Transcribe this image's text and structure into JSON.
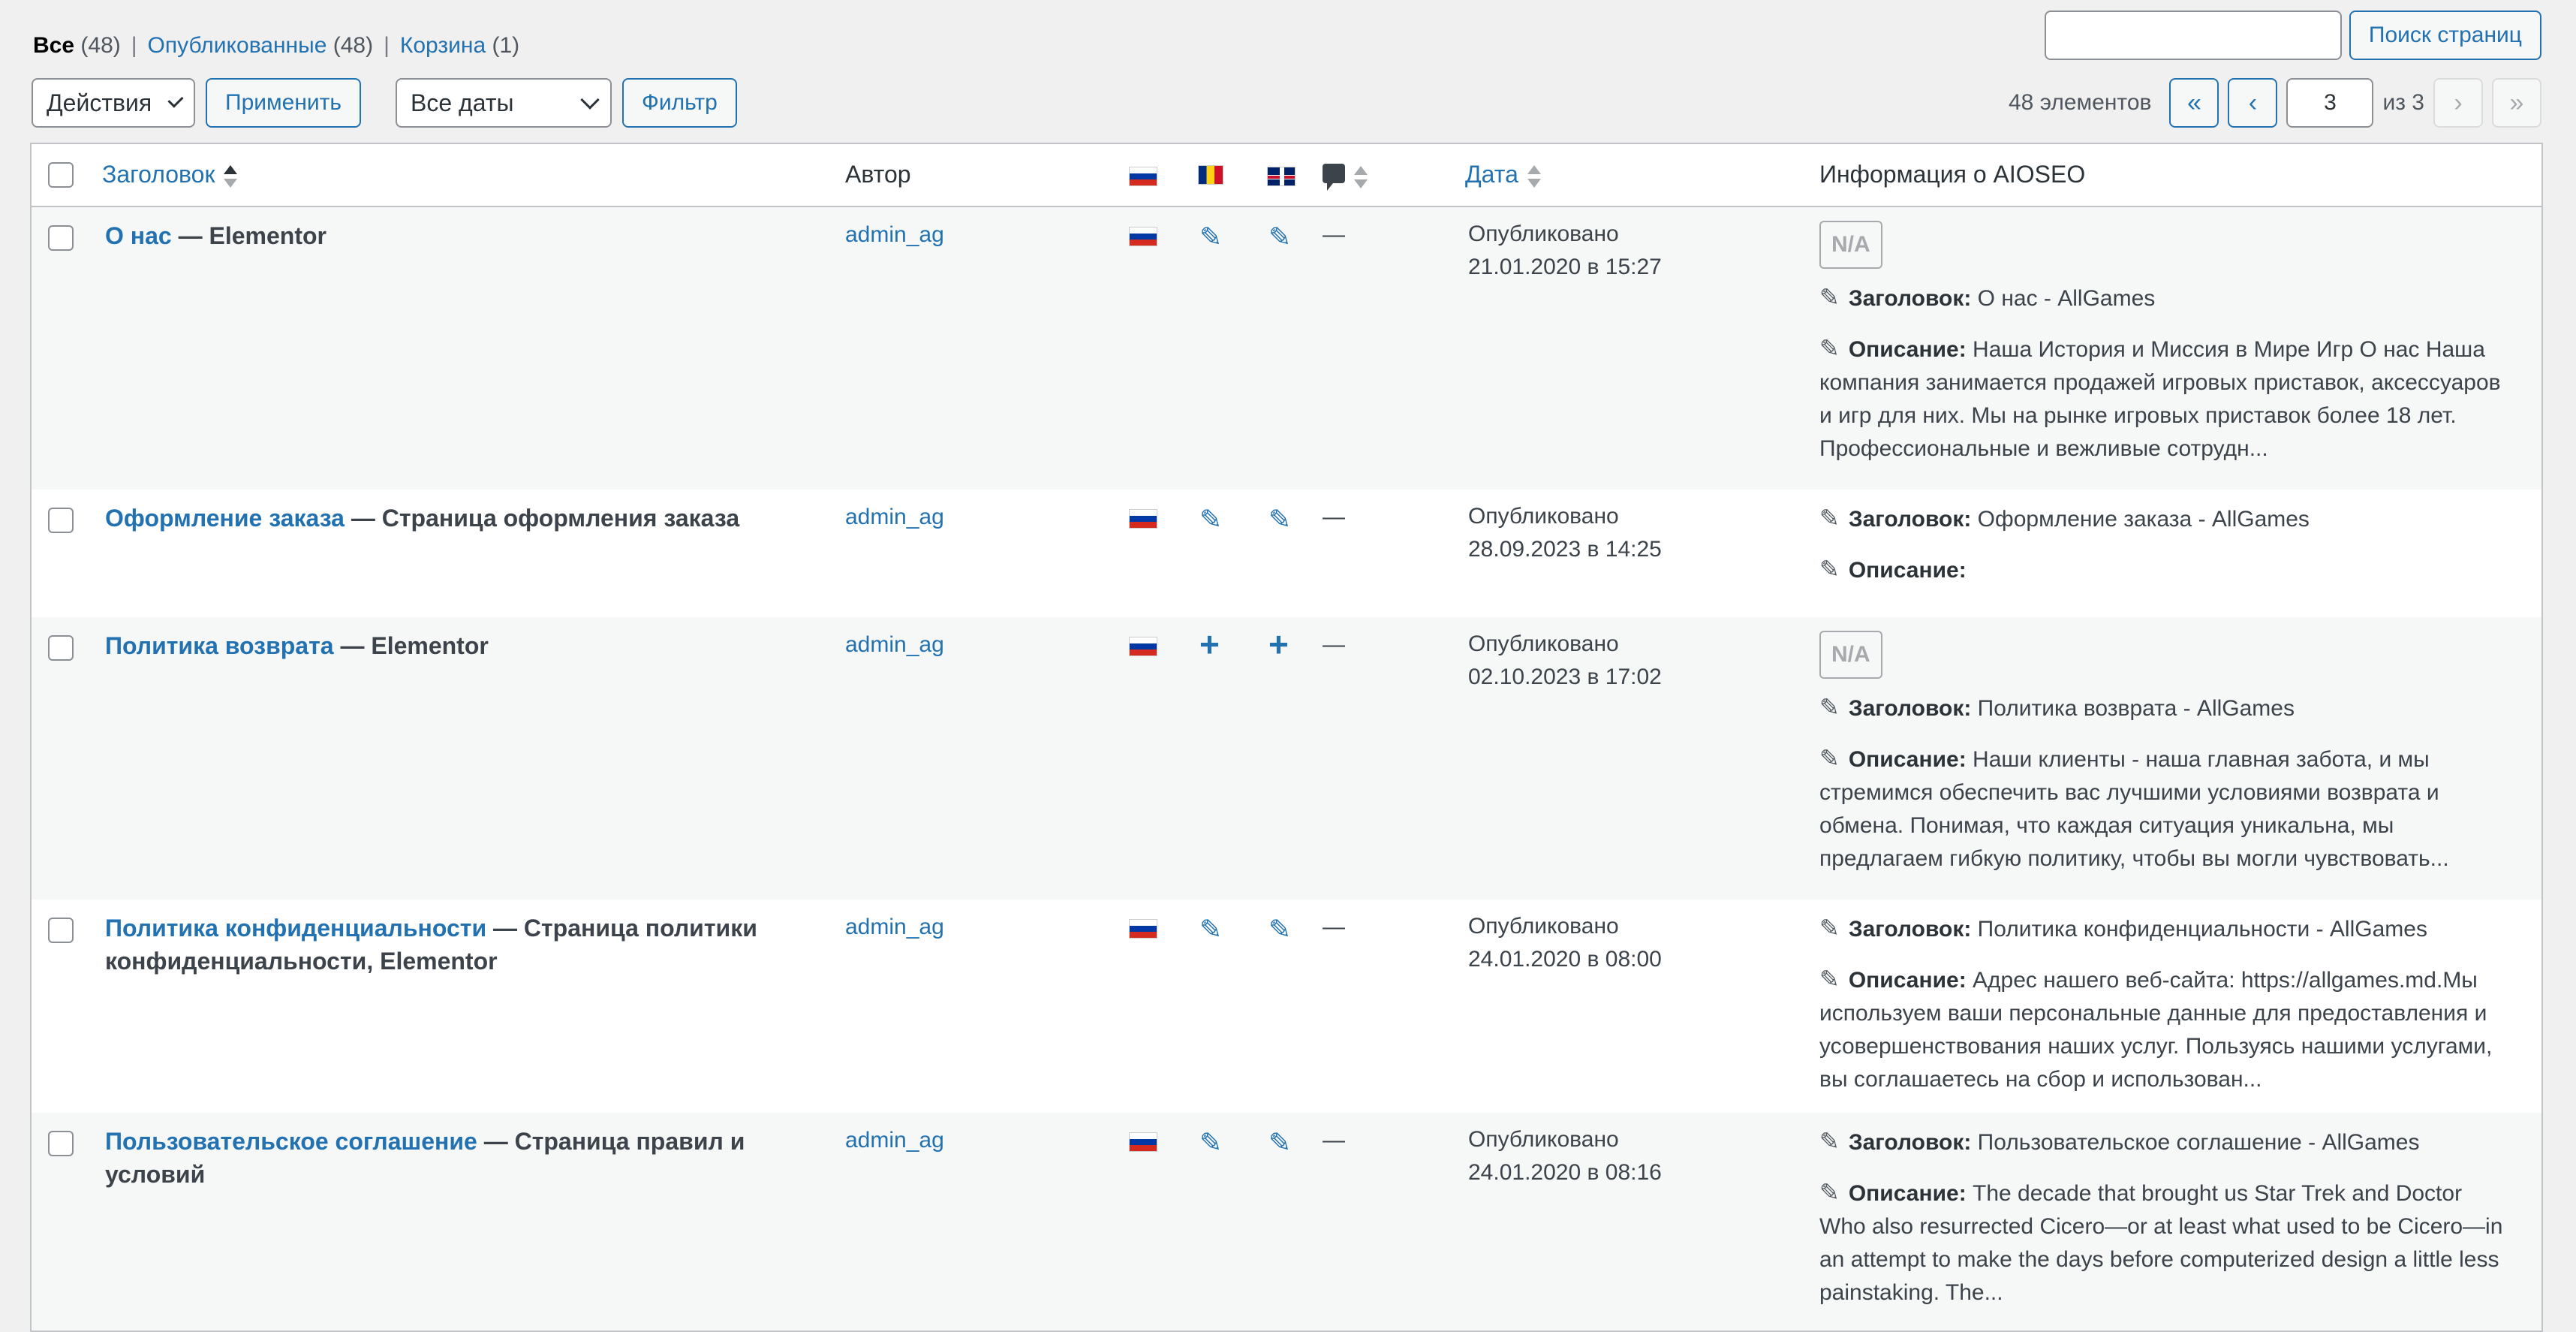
{
  "views": {
    "all_label": "Все",
    "all_count": "(48)",
    "published_label": "Опубликованные",
    "published_count": "(48)",
    "trash_label": "Корзина",
    "trash_count": "(1)",
    "separator": "|"
  },
  "search": {
    "button_label": "Поиск страниц",
    "value": ""
  },
  "bulk": {
    "actions_value": "Действия",
    "apply_label": "Применить",
    "dates_value": "Все даты",
    "filter_label": "Фильтр"
  },
  "pagination": {
    "items_text": "48 элементов",
    "first": "«",
    "prev": "‹",
    "current_page": "3",
    "of_text": "из 3",
    "next": "›",
    "last": "»"
  },
  "columns": {
    "title": "Заголовок",
    "author": "Автор",
    "date": "Дата",
    "seo": "Информация о AIOSEO"
  },
  "icons": {
    "pencil": "✎",
    "plus": "+",
    "dash": "—"
  },
  "rows": [
    {
      "title": "О нас",
      "suffix": " — Elementor",
      "author": "admin_ag",
      "status": "Опубликовано",
      "date": "21.01.2020 в 15:27",
      "na": "N/A",
      "seo_title_label": "Заголовок:",
      "seo_title": " О нас - AllGames",
      "seo_desc_label": "Описание:",
      "seo_desc": " Наша История и Миссия в Мире Игр О нас Наша компания занимается продажей игровых приставок, аксессуаров и игр для них. Мы на рынке игровых приставок более 18 лет. Профессиональные и вежливые сотрудн..."
    },
    {
      "title": "Оформление заказа",
      "suffix": " — Страница оформления заказа",
      "author": "admin_ag",
      "status": "Опубликовано",
      "date": "28.09.2023 в 14:25",
      "seo_title_label": "Заголовок:",
      "seo_title": " Оформление заказа - AllGames",
      "seo_desc_label": "Описание:",
      "seo_desc": ""
    },
    {
      "title": "Политика возврата",
      "suffix": " — Elementor",
      "author": "admin_ag",
      "status": "Опубликовано",
      "date": "02.10.2023 в 17:02",
      "na": "N/A",
      "seo_title_label": "Заголовок:",
      "seo_title": " Политика возврата - AllGames",
      "seo_desc_label": "Описание:",
      "seo_desc": " Наши клиенты - наша главная забота, и мы стремимся обеспечить вас лучшими условиями возврата и обмена. Понимая, что каждая ситуация уникальна, мы предлагаем гибкую политику, чтобы вы могли чувствовать..."
    },
    {
      "title": "Политика конфиденциальности",
      "suffix": " — Страница политики конфиденциальности, Elementor",
      "author": "admin_ag",
      "status": "Опубликовано",
      "date": "24.01.2020 в 08:00",
      "seo_title_label": "Заголовок:",
      "seo_title": " Политика конфиденциальности - AllGames",
      "seo_desc_label": "Описание:",
      "seo_desc": " Адрес нашего веб-сайта: https://allgames.md.Мы используем ваши персональные данные для предоставления и усовершенствования наших услуг. Пользуясь нашими услугами, вы соглашаетесь на сбор и использован..."
    },
    {
      "title": "Пользовательское соглашение",
      "suffix": " — Страница правил и условий",
      "author": "admin_ag",
      "status": "Опубликовано",
      "date": "24.01.2020 в 08:16",
      "seo_title_label": "Заголовок:",
      "seo_title": " Пользовательское соглашение - AllGames",
      "seo_desc_label": "Описание:",
      "seo_desc": " The decade that brought us Star Trek and Doctor Who also resurrected Cicero—or at least what used to be Cicero—in an attempt to make the days before computerized design a little less painstaking. The..."
    }
  ]
}
